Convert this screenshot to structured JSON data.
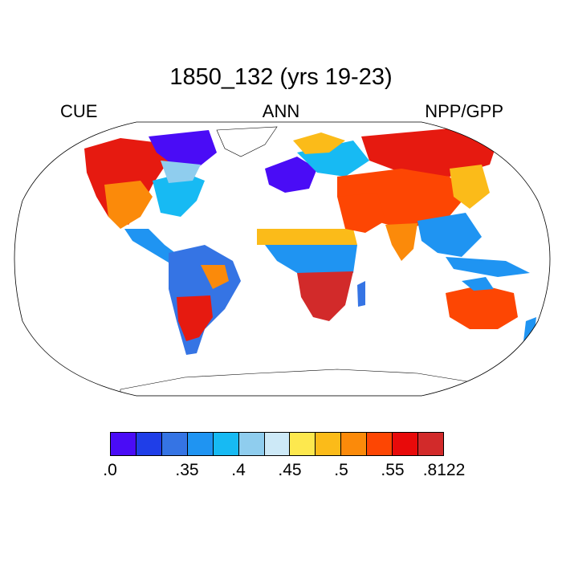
{
  "title": "1850_132 (yrs 19-23)",
  "left_label": "CUE",
  "center_label": "ANN",
  "right_label": "NPP/GPP",
  "colorbar": {
    "colors": [
      "#4a0cf6",
      "#1f3ee8",
      "#3574e4",
      "#1f94f2",
      "#17baf3",
      "#8fcdee",
      "#cde9f7",
      "#fde84e",
      "#fbbb19",
      "#fb8a0a",
      "#fd4603",
      "#e80a0a",
      "#d22a2a"
    ],
    "tick_labels": [
      ".0",
      ".35",
      ".4",
      ".45",
      ".5",
      ".55",
      ".8122"
    ]
  },
  "map": {
    "projection": "robinson",
    "variable": "NPP/GPP",
    "regions": [
      {
        "name": "north-america-west",
        "level": "high"
      },
      {
        "name": "north-america-east",
        "level": "low"
      },
      {
        "name": "south-america",
        "level": "low"
      },
      {
        "name": "europe",
        "level": "low"
      },
      {
        "name": "asia-central",
        "level": "high"
      },
      {
        "name": "africa-south",
        "level": "high"
      },
      {
        "name": "australia",
        "level": "high"
      }
    ]
  }
}
